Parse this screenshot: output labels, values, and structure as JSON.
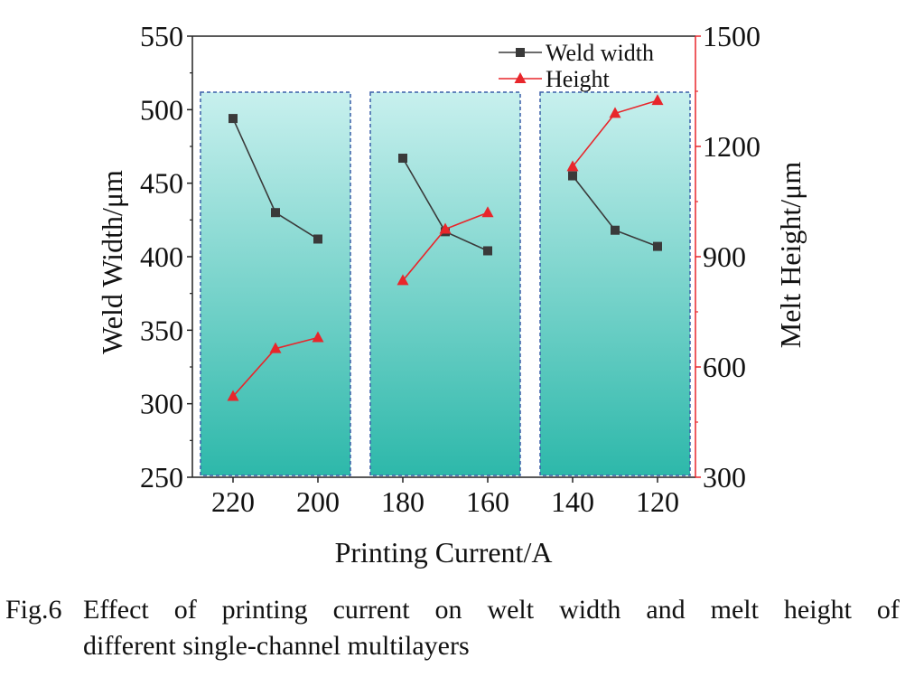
{
  "chart_data": {
    "type": "line",
    "x_ticks": [
      "220",
      "200",
      "180",
      "160",
      "140",
      "120"
    ],
    "xlabel": "Printing Current/A",
    "ylabel_left": "Weld Width/μm",
    "ylabel_right": "Melt Height/μm",
    "y_left_lim": [
      250,
      550
    ],
    "y_left_ticks": [
      "250",
      "300",
      "350",
      "400",
      "450",
      "500",
      "550"
    ],
    "y_right_lim": [
      300,
      1500
    ],
    "y_right_ticks": [
      "300",
      "600",
      "900",
      "1200",
      "1500"
    ],
    "groups": [
      {
        "x": [
          220,
          210,
          200
        ]
      },
      {
        "x": [
          180,
          170,
          160
        ]
      },
      {
        "x": [
          140,
          130,
          120
        ]
      }
    ],
    "series": [
      {
        "name": "Weld width",
        "axis": "left",
        "color": "#3a3a3a",
        "marker": "square",
        "groups": [
          [
            494,
            430,
            412
          ],
          [
            467,
            417,
            404
          ],
          [
            455,
            418,
            407
          ]
        ]
      },
      {
        "name": "Height",
        "axis": "right",
        "color": "#e8262b",
        "marker": "triangle",
        "groups": [
          [
            520,
            650,
            680
          ],
          [
            835,
            975,
            1020
          ],
          [
            1145,
            1290,
            1325
          ]
        ]
      }
    ],
    "legend": "top-right",
    "panel_fill_top": "#c8f0ee",
    "panel_fill_bottom": "#2db8aa",
    "panel_border": "#3a5fa8"
  },
  "caption": {
    "number": "Fig.6",
    "line1_words": [
      "Effect",
      "of",
      "printing",
      "current",
      "on",
      "welt",
      "width",
      "and",
      "melt",
      "height",
      "of"
    ],
    "line2": "different single-channel multilayers"
  }
}
